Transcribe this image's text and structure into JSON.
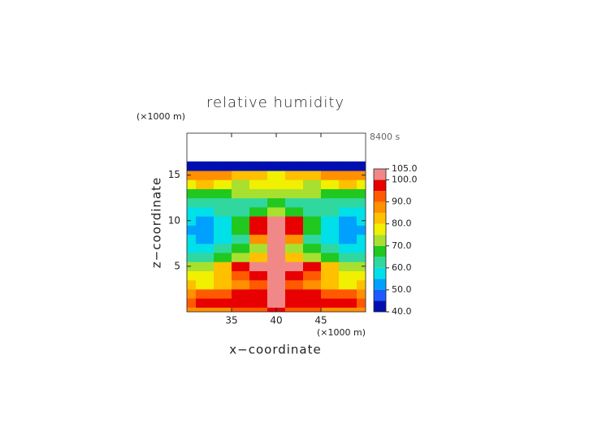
{
  "chart_data": {
    "type": "contour",
    "title": "relative humidity",
    "x_unit": "(×1000 m)",
    "y_unit": "(×1000 m)",
    "time_label": "8400 s",
    "xlabel": "x−coordinate",
    "ylabel": "z−coordinate",
    "xlim": [
      30,
      50
    ],
    "ylim": [
      0,
      19.6
    ],
    "xticks": [
      35,
      40,
      45
    ],
    "yticks": [
      5,
      10,
      15
    ],
    "x": [
      30,
      32,
      34,
      36,
      38,
      40,
      42,
      44,
      46,
      48,
      50
    ],
    "z": [
      0,
      1,
      2,
      3,
      4,
      5,
      6,
      7,
      8,
      9,
      10,
      11,
      12,
      13,
      14,
      15,
      16
    ],
    "values": [
      [
        85,
        85,
        88,
        90,
        92,
        95,
        92,
        90,
        88,
        85,
        85
      ],
      [
        92,
        95,
        97,
        97,
        98,
        100,
        98,
        97,
        97,
        95,
        92
      ],
      [
        88,
        90,
        92,
        95,
        97,
        100,
        97,
        95,
        92,
        90,
        88
      ],
      [
        80,
        78,
        80,
        85,
        90,
        102,
        90,
        85,
        80,
        78,
        80
      ],
      [
        75,
        75,
        80,
        92,
        98,
        102,
        98,
        92,
        80,
        75,
        75
      ],
      [
        70,
        72,
        80,
        95,
        100,
        103,
        100,
        95,
        80,
        72,
        70
      ],
      [
        62,
        62,
        65,
        70,
        80,
        103,
        80,
        70,
        65,
        62,
        62
      ],
      [
        58,
        58,
        60,
        65,
        72,
        102,
        72,
        65,
        60,
        58,
        58
      ],
      [
        55,
        52,
        55,
        60,
        85,
        103,
        85,
        60,
        55,
        52,
        55
      ],
      [
        52,
        50,
        55,
        65,
        98,
        104,
        98,
        65,
        55,
        50,
        52
      ],
      [
        55,
        52,
        58,
        65,
        95,
        103,
        95,
        65,
        58,
        52,
        55
      ],
      [
        58,
        58,
        60,
        62,
        65,
        70,
        65,
        62,
        60,
        58,
        58
      ],
      [
        62,
        62,
        62,
        60,
        62,
        65,
        62,
        60,
        62,
        62,
        62
      ],
      [
        65,
        65,
        68,
        70,
        72,
        72,
        72,
        70,
        68,
        65,
        65
      ],
      [
        75,
        80,
        78,
        72,
        75,
        75,
        75,
        72,
        78,
        80,
        75
      ],
      [
        85,
        88,
        85,
        82,
        80,
        78,
        80,
        82,
        85,
        88,
        85
      ],
      [
        42,
        42,
        42,
        42,
        42,
        42,
        42,
        42,
        42,
        42,
        42
      ]
    ],
    "levels": [
      40,
      45,
      50,
      55,
      60,
      65,
      70,
      75,
      80,
      85,
      90,
      95,
      100,
      105
    ],
    "colors": [
      "#0010b0",
      "#1e5aff",
      "#00a0ff",
      "#00e0e8",
      "#30d8a0",
      "#20c820",
      "#a8e030",
      "#f0f000",
      "#ffc000",
      "#ff9000",
      "#ff5a00",
      "#e80000",
      "#f08888"
    ],
    "colorbar_ticks": [
      {
        "value": 40,
        "label": "40.0"
      },
      {
        "value": 50,
        "label": "50.0"
      },
      {
        "value": 60,
        "label": "60.0"
      },
      {
        "value": 70,
        "label": "70.0"
      },
      {
        "value": 80,
        "label": "80.0"
      },
      {
        "value": 90,
        "label": "90.0"
      },
      {
        "value": 100,
        "label": "100.0"
      },
      {
        "value": 105,
        "label": "105.0"
      }
    ]
  }
}
